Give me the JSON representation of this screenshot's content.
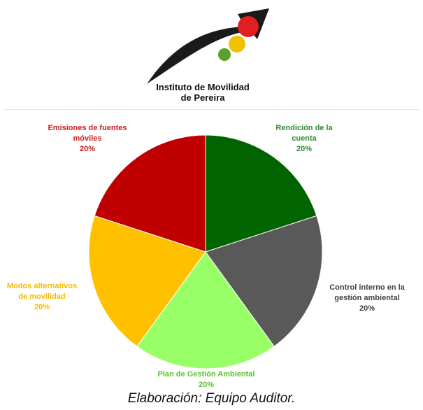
{
  "logo": {
    "line1": "Instituto de Movilidad",
    "line2": "de Pereira",
    "icon": "traffic-light-arrow",
    "colors": {
      "red": "#e02020",
      "yellow": "#f2c000",
      "green": "#5aa02c",
      "arrow": "#1a1a1a"
    }
  },
  "chart_data": {
    "type": "pie",
    "title": "",
    "slices": [
      {
        "label_lines": [
          "Rendición de la",
          "cuenta"
        ],
        "value": 20,
        "value_label": "20%",
        "color": "#006400",
        "label_color": "#2e8b2e"
      },
      {
        "label_lines": [
          "Control interno en la",
          "gestión ambiental"
        ],
        "value": 20,
        "value_label": "20%",
        "color": "#595959",
        "label_color": "#404040"
      },
      {
        "label_lines": [
          "Plan de Gestión Ambiental"
        ],
        "value": 20,
        "value_label": "20%",
        "color": "#99ff66",
        "label_color": "#5fbf2f"
      },
      {
        "label_lines": [
          "Modos alternativos",
          "de movilidad"
        ],
        "value": 20,
        "value_label": "20%",
        "color": "#ffc000",
        "label_color": "#f5b800"
      },
      {
        "label_lines": [
          "Emisiones de fuentes",
          "móviles"
        ],
        "value": 20,
        "value_label": "20%",
        "color": "#c00000",
        "label_color": "#d11a1a"
      }
    ]
  },
  "caption": "Elaboración: Equipo Auditor."
}
